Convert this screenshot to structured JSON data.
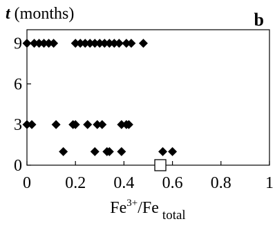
{
  "chart_data": {
    "type": "scatter",
    "panel_label": "b",
    "ylabel_var": "t",
    "ylabel_rest": " (months)",
    "xlabel_main": "Fe",
    "xlabel_sup": "3+",
    "xlabel_mid": "/Fe",
    "xlabel_sub": "total",
    "xlim": [
      0,
      1
    ],
    "ylim": [
      0,
      10
    ],
    "x_ticks": [
      0,
      0.2,
      0.4,
      0.6,
      0.8,
      1
    ],
    "x_tick_labels": [
      "0",
      "0.2",
      "0.4",
      "0.6",
      "0.8",
      "1"
    ],
    "y_ticks": [
      0,
      3,
      6,
      9
    ],
    "y_tick_labels": [
      "0",
      "3",
      "6",
      "9"
    ],
    "grid": false,
    "series": [
      {
        "marker": "diamond-filled",
        "color": "#000000",
        "points": [
          [
            0.0,
            9
          ],
          [
            0.03,
            9
          ],
          [
            0.05,
            9
          ],
          [
            0.07,
            9
          ],
          [
            0.09,
            9
          ],
          [
            0.11,
            9
          ],
          [
            0.2,
            9
          ],
          [
            0.22,
            9
          ],
          [
            0.24,
            9
          ],
          [
            0.26,
            9
          ],
          [
            0.28,
            9
          ],
          [
            0.3,
            9
          ],
          [
            0.32,
            9
          ],
          [
            0.34,
            9
          ],
          [
            0.36,
            9
          ],
          [
            0.38,
            9
          ],
          [
            0.41,
            9
          ],
          [
            0.43,
            9
          ],
          [
            0.48,
            9
          ],
          [
            0.0,
            3
          ],
          [
            0.02,
            3
          ],
          [
            0.12,
            3
          ],
          [
            0.19,
            3
          ],
          [
            0.2,
            3
          ],
          [
            0.25,
            3
          ],
          [
            0.29,
            3
          ],
          [
            0.31,
            3
          ],
          [
            0.39,
            3
          ],
          [
            0.41,
            3
          ],
          [
            0.42,
            3
          ],
          [
            0.15,
            1
          ],
          [
            0.28,
            1
          ],
          [
            0.33,
            1
          ],
          [
            0.34,
            1
          ],
          [
            0.39,
            1
          ],
          [
            0.56,
            1
          ],
          [
            0.6,
            1
          ]
        ]
      },
      {
        "marker": "square-open",
        "color": "#000000",
        "points": [
          [
            0.55,
            0
          ]
        ]
      }
    ]
  }
}
